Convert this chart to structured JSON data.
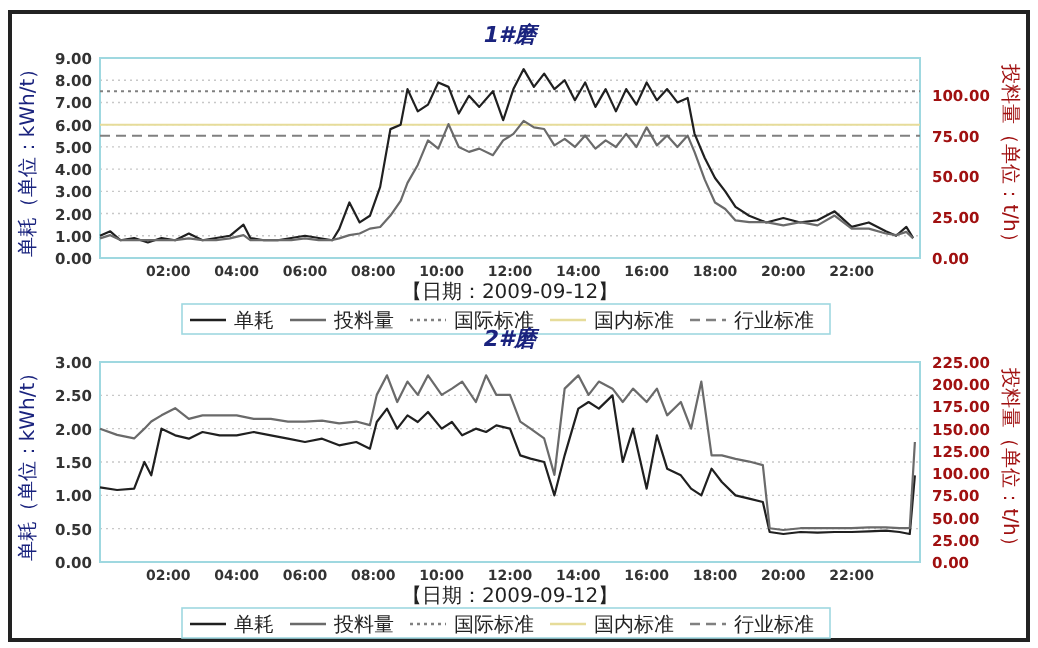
{
  "chart_data": [
    {
      "type": "line",
      "title": "1#磨",
      "ylabel": "单耗（单位：kWh/t）",
      "y2label": "投料量（单位：t/h）",
      "annotations": [
        "【日期：2009-09-12】"
      ],
      "grid": "y",
      "legend": "bottom",
      "xlim": [
        0,
        24
      ],
      "xticks": [
        {
          "value": 2,
          "label": "02:00"
        },
        {
          "value": 4,
          "label": "04:00"
        },
        {
          "value": 6,
          "label": "06:00"
        },
        {
          "value": 8,
          "label": "08:00"
        },
        {
          "value": 10,
          "label": "10:00"
        },
        {
          "value": 12,
          "label": "12:00"
        },
        {
          "value": 14,
          "label": "14:00"
        },
        {
          "value": 16,
          "label": "16:00"
        },
        {
          "value": 18,
          "label": "18:00"
        },
        {
          "value": 20,
          "label": "20:00"
        },
        {
          "value": 22,
          "label": "22:00"
        }
      ],
      "ylim": [
        0,
        9
      ],
      "yticks": [
        {
          "value": 0,
          "label": "0.00"
        },
        {
          "value": 1,
          "label": "1.00"
        },
        {
          "value": 2,
          "label": "2.00"
        },
        {
          "value": 3,
          "label": "3.00"
        },
        {
          "value": 4,
          "label": "4.00"
        },
        {
          "value": 5,
          "label": "5.00"
        },
        {
          "value": 6,
          "label": "6.00"
        },
        {
          "value": 7,
          "label": "7.00"
        },
        {
          "value": 8,
          "label": "8.00"
        },
        {
          "value": 9,
          "label": "9.00"
        }
      ],
      "y2lim": [
        0,
        122.5
      ],
      "y2ticks": [
        {
          "value": 0,
          "label": "0.00"
        },
        {
          "value": 25,
          "label": "25.00"
        },
        {
          "value": 50,
          "label": "50.00"
        },
        {
          "value": 75,
          "label": "75.00"
        },
        {
          "value": 100,
          "label": "100.00"
        }
      ],
      "series": [
        {
          "name": "单耗",
          "color": "#202020",
          "x": [
            0,
            0.3,
            0.6,
            1,
            1.4,
            1.8,
            2.2,
            2.6,
            3,
            3.4,
            3.8,
            4.2,
            4.4,
            4.8,
            5.2,
            5.6,
            6,
            6.4,
            6.8,
            7.0,
            7.3,
            7.6,
            7.9,
            8.2,
            8.5,
            8.8,
            9.0,
            9.3,
            9.6,
            9.9,
            10.2,
            10.5,
            10.8,
            11.1,
            11.5,
            11.8,
            12.1,
            12.4,
            12.7,
            13.0,
            13.3,
            13.6,
            13.9,
            14.2,
            14.5,
            14.8,
            15.1,
            15.4,
            15.7,
            16.0,
            16.3,
            16.6,
            16.9,
            17.2,
            17.4,
            17.7,
            18.0,
            18.3,
            18.6,
            19.0,
            19.5,
            20,
            20.5,
            21,
            21.5,
            22,
            22.5,
            23,
            23.3,
            23.6,
            23.8
          ],
          "values": [
            1.0,
            1.2,
            0.8,
            0.9,
            0.7,
            0.9,
            0.8,
            1.1,
            0.8,
            0.9,
            1.0,
            1.5,
            0.9,
            0.8,
            0.8,
            0.9,
            1.0,
            0.9,
            0.8,
            1.3,
            2.5,
            1.6,
            1.9,
            3.2,
            5.8,
            6.0,
            7.6,
            6.6,
            6.9,
            7.9,
            7.7,
            6.5,
            7.3,
            6.8,
            7.5,
            6.2,
            7.6,
            8.5,
            7.7,
            8.3,
            7.6,
            8.0,
            7.1,
            7.9,
            6.8,
            7.6,
            6.6,
            7.6,
            6.9,
            7.9,
            7.1,
            7.6,
            7.0,
            7.2,
            5.6,
            4.5,
            3.6,
            3.0,
            2.3,
            1.9,
            1.6,
            1.8,
            1.6,
            1.7,
            2.1,
            1.4,
            1.6,
            1.2,
            1.0,
            1.4,
            0.9
          ]
        },
        {
          "name": "投料量",
          "color": "#6a6a6a",
          "axis": "y2",
          "x": [
            0,
            0.3,
            0.6,
            1,
            1.4,
            1.8,
            2.2,
            2.6,
            3,
            3.4,
            3.8,
            4.2,
            4.4,
            4.8,
            5.2,
            5.6,
            6,
            6.4,
            6.8,
            7.0,
            7.3,
            7.6,
            7.9,
            8.2,
            8.5,
            8.8,
            9.0,
            9.3,
            9.6,
            9.9,
            10.2,
            10.5,
            10.8,
            11.1,
            11.5,
            11.8,
            12.1,
            12.4,
            12.7,
            13.0,
            13.3,
            13.6,
            13.9,
            14.2,
            14.5,
            14.8,
            15.1,
            15.4,
            15.7,
            16.0,
            16.3,
            16.6,
            16.9,
            17.2,
            17.4,
            17.7,
            18.0,
            18.3,
            18.6,
            19.0,
            19.5,
            20,
            20.5,
            21,
            21.5,
            22,
            22.5,
            23,
            23.3,
            23.6,
            23.8
          ],
          "values": [
            12,
            14,
            11,
            11,
            11,
            11,
            11,
            12,
            11,
            11,
            12,
            14,
            11,
            11,
            11,
            11,
            12,
            11,
            11,
            12,
            14,
            15,
            18,
            19,
            26,
            35,
            46,
            57,
            72,
            67,
            82,
            68,
            65,
            67,
            63,
            72,
            76,
            84,
            80,
            79,
            69,
            73,
            68,
            75,
            67,
            72,
            68,
            76,
            68,
            80,
            69,
            75,
            68,
            75,
            65,
            48,
            34,
            30,
            23,
            22,
            22,
            20,
            22,
            20,
            26,
            18,
            18,
            15,
            14,
            16,
            12
          ]
        }
      ],
      "ref_lines": [
        {
          "axis": "y",
          "value": 7.5,
          "label": "国际标准",
          "color": "#808080",
          "line_style": "dotted"
        },
        {
          "axis": "y",
          "value": 6.0,
          "label": "国内标准",
          "color": "#e6dc9a",
          "line_style": "solid"
        },
        {
          "axis": "y",
          "value": 5.5,
          "label": "行业标准",
          "color": "#808080",
          "line_style": "dashed"
        }
      ]
    },
    {
      "type": "line",
      "title": "2#磨",
      "ylabel": "单耗（单位：kWh/t）",
      "y2label": "投料量（单位：t/h）",
      "annotations": [
        "【日期：2009-09-12】"
      ],
      "grid": "y",
      "legend": "bottom",
      "xlim": [
        0,
        24
      ],
      "xticks": [
        {
          "value": 2,
          "label": "02:00"
        },
        {
          "value": 4,
          "label": "04:00"
        },
        {
          "value": 6,
          "label": "06:00"
        },
        {
          "value": 8,
          "label": "08:00"
        },
        {
          "value": 10,
          "label": "10:00"
        },
        {
          "value": 12,
          "label": "12:00"
        },
        {
          "value": 14,
          "label": "14:00"
        },
        {
          "value": 16,
          "label": "16:00"
        },
        {
          "value": 18,
          "label": "18:00"
        },
        {
          "value": 20,
          "label": "20:00"
        },
        {
          "value": 22,
          "label": "22:00"
        }
      ],
      "ylim": [
        0,
        3
      ],
      "yticks": [
        {
          "value": 0,
          "label": "0.00"
        },
        {
          "value": 0.5,
          "label": "0.50"
        },
        {
          "value": 1,
          "label": "1.00"
        },
        {
          "value": 1.5,
          "label": "1.50"
        },
        {
          "value": 2,
          "label": "2.00"
        },
        {
          "value": 2.5,
          "label": "2.50"
        },
        {
          "value": 3,
          "label": "3.00"
        }
      ],
      "y2lim": [
        0,
        225
      ],
      "y2ticks": [
        {
          "value": 0,
          "label": "0.00"
        },
        {
          "value": 25,
          "label": "25.00"
        },
        {
          "value": 50,
          "label": "50.00"
        },
        {
          "value": 75,
          "label": "75.00"
        },
        {
          "value": 100,
          "label": "100.00"
        },
        {
          "value": 125,
          "label": "125.00"
        },
        {
          "value": 150,
          "label": "150.00"
        },
        {
          "value": 175,
          "label": "175.00"
        },
        {
          "value": 200,
          "label": "200.00"
        },
        {
          "value": 225,
          "label": "225.00"
        }
      ],
      "series": [
        {
          "name": "单耗",
          "color": "#202020",
          "x": [
            0,
            0.5,
            1.0,
            1.3,
            1.5,
            1.8,
            2.2,
            2.6,
            3,
            3.5,
            4,
            4.5,
            5,
            5.5,
            6,
            6.5,
            7,
            7.5,
            7.9,
            8.1,
            8.4,
            8.7,
            9.0,
            9.3,
            9.6,
            10,
            10.3,
            10.6,
            11,
            11.3,
            11.6,
            12,
            12.3,
            12.6,
            13,
            13.3,
            13.6,
            14,
            14.3,
            14.6,
            15,
            15.3,
            15.6,
            16,
            16.3,
            16.6,
            17,
            17.3,
            17.6,
            17.9,
            18.2,
            18.6,
            19,
            19.4,
            19.6,
            20,
            20.5,
            21,
            21.5,
            22,
            22.5,
            23,
            23.4,
            23.7,
            23.85
          ],
          "values": [
            1.12,
            1.08,
            1.1,
            1.5,
            1.3,
            2.0,
            1.9,
            1.85,
            1.95,
            1.9,
            1.9,
            1.95,
            1.9,
            1.85,
            1.8,
            1.85,
            1.75,
            1.8,
            1.7,
            2.1,
            2.3,
            2.0,
            2.2,
            2.1,
            2.25,
            2.0,
            2.1,
            1.9,
            2.0,
            1.95,
            2.05,
            2.0,
            1.6,
            1.55,
            1.5,
            1.0,
            1.6,
            2.3,
            2.4,
            2.3,
            2.5,
            1.5,
            2.0,
            1.1,
            1.9,
            1.4,
            1.3,
            1.1,
            1.0,
            1.4,
            1.2,
            1.0,
            0.95,
            0.9,
            0.45,
            0.42,
            0.45,
            0.44,
            0.45,
            0.45,
            0.46,
            0.47,
            0.45,
            0.42,
            1.3
          ]
        },
        {
          "name": "投料量",
          "color": "#6a6a6a",
          "axis": "y2",
          "x": [
            0,
            0.5,
            1.0,
            1.3,
            1.5,
            1.8,
            2.2,
            2.6,
            3,
            3.5,
            4,
            4.5,
            5,
            5.5,
            6,
            6.5,
            7,
            7.5,
            7.9,
            8.1,
            8.4,
            8.7,
            9.0,
            9.3,
            9.6,
            10,
            10.3,
            10.6,
            11,
            11.3,
            11.6,
            12,
            12.3,
            12.6,
            13,
            13.3,
            13.6,
            14,
            14.3,
            14.6,
            15,
            15.3,
            15.6,
            16,
            16.3,
            16.6,
            17,
            17.3,
            17.6,
            17.9,
            18.2,
            18.6,
            19,
            19.4,
            19.6,
            20,
            20.5,
            21,
            21.5,
            22,
            22.5,
            23,
            23.4,
            23.7,
            23.85
          ],
          "values": [
            150,
            143,
            139,
            150,
            158,
            165,
            173,
            161,
            165,
            165,
            165,
            161,
            161,
            158,
            158,
            159,
            156,
            158,
            154,
            188,
            210,
            180,
            203,
            188,
            210,
            188,
            195,
            203,
            180,
            210,
            188,
            188,
            158,
            150,
            139,
            98,
            195,
            210,
            188,
            203,
            195,
            180,
            195,
            180,
            195,
            165,
            180,
            150,
            203,
            120,
            120,
            116,
            113,
            109,
            38,
            36,
            38,
            38,
            38,
            38,
            39,
            39,
            38,
            38,
            135
          ]
        },
        {
          "name": "国际标准",
          "color": "#808080",
          "line_style": "dotted"
        },
        {
          "name": "国内标准",
          "color": "#e6dc9a"
        },
        {
          "name": "行业标准",
          "color": "#808080",
          "line_style": "dashed"
        }
      ]
    }
  ]
}
